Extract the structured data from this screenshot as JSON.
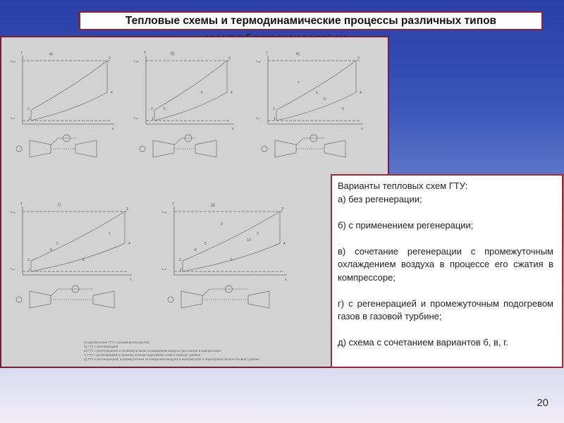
{
  "slide": {
    "title": "Тепловые схемы и термодинамические процессы различных типов",
    "title_hidden_line": "газотурбинных установок",
    "page_number": "20"
  },
  "figure": {
    "axis_t": "T",
    "axis_s": "s",
    "tmax": "Tₘₐₓ",
    "tmin": "Tₘᵢₙ",
    "panels": [
      {
        "label": "а)",
        "points": [
          "1",
          "2",
          "3",
          "4"
        ]
      },
      {
        "label": "б)",
        "points": [
          "1",
          "2",
          "3",
          "4",
          "5",
          "6"
        ]
      },
      {
        "label": "в)",
        "points": [
          "1",
          "2",
          "3",
          "4",
          "5",
          "6",
          "7",
          "8"
        ]
      },
      {
        "label": "г)",
        "points": [
          "1",
          "2",
          "3",
          "4",
          "5",
          "6",
          "7",
          "8"
        ]
      },
      {
        "label": "д)",
        "points": [
          "1",
          "2",
          "3",
          "4",
          "5",
          "6",
          "7",
          "8",
          "9",
          "10"
        ]
      }
    ],
    "caption": [
      "а) одновальная ГТУ с разомкнутым циклом",
      "б) ГТУ с регенерацией",
      "в) ГТУ с регенерацией и промежуточным охлаждением воздуха при сжатии в компрессоре",
      "г) ГТУ с регенерацией и промежуточным подогревом газов в газовой турбине",
      "д) ГТУ с регенерацией, промежуточным охлаждением воздуха в компрессоре и подогревом газов в газовой турбине"
    ]
  },
  "textbox": {
    "heading": "Варианты тепловых схем  ГТУ:",
    "items": [
      "а) без регенерации;",
      "б) с применением регенерации;",
      "в) сочетание регенерации с промежуточным охлаждением воздуха в процессе его сжатия в компрессоре;",
      "г) с регенерацией и промежуточным подогревом газов в газовой турбине;",
      "д) схема с сочетанием вариантов б, в, г."
    ]
  }
}
